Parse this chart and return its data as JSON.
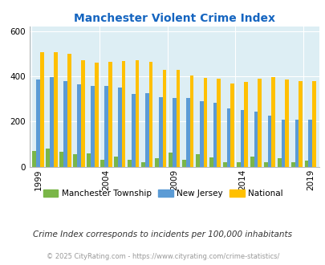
{
  "title": "Manchester Violent Crime Index",
  "years": [
    1999,
    2000,
    2001,
    2002,
    2003,
    2004,
    2005,
    2006,
    2007,
    2008,
    2009,
    2010,
    2011,
    2012,
    2013,
    2014,
    2015,
    2016,
    2017,
    2018,
    2019
  ],
  "manchester": [
    70,
    82,
    68,
    55,
    60,
    32,
    47,
    30,
    22,
    40,
    62,
    32,
    55,
    42,
    22,
    22,
    47,
    22,
    38,
    22,
    28
  ],
  "new_jersey": [
    385,
    398,
    378,
    363,
    358,
    357,
    352,
    322,
    325,
    308,
    305,
    303,
    290,
    283,
    258,
    252,
    244,
    228,
    210,
    210,
    210
  ],
  "national": [
    507,
    507,
    498,
    470,
    462,
    465,
    469,
    470,
    463,
    428,
    430,
    405,
    392,
    390,
    367,
    375,
    388,
    398,
    385,
    380,
    380
  ],
  "ylim": [
    0,
    620
  ],
  "yticks": [
    0,
    200,
    400,
    600
  ],
  "color_manchester": "#7ab648",
  "color_nj": "#5b9bd5",
  "color_national": "#ffc000",
  "bg_color": "#ddeef4",
  "title_color": "#1565c0",
  "footer_color": "#999999",
  "subtitle_color": "#333333",
  "bar_width": 0.28,
  "legend_labels": [
    "Manchester Township",
    "New Jersey",
    "National"
  ],
  "subtitle": "Crime Index corresponds to incidents per 100,000 inhabitants",
  "footer": "© 2025 CityRating.com - https://www.cityrating.com/crime-statistics/",
  "tick_years": [
    1999,
    2004,
    2009,
    2014,
    2019
  ]
}
